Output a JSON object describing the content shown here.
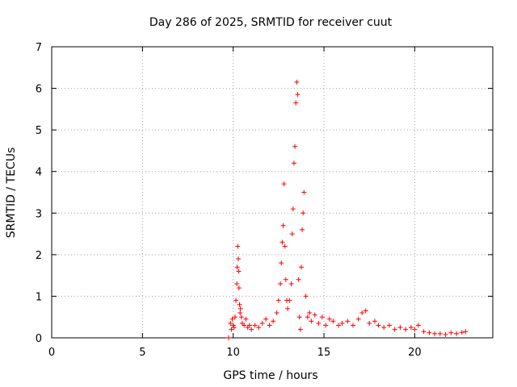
{
  "chart_data": {
    "type": "scatter",
    "title": "Day 286 of 2025, SRMTID for receiver cuut",
    "xlabel": "GPS time / hours",
    "ylabel": "SRMTID / TECUs",
    "xlim": [
      0,
      24.3
    ],
    "ylim": [
      0,
      7
    ],
    "xticks": [
      0,
      5,
      10,
      15,
      20
    ],
    "yticks": [
      0,
      1,
      2,
      3,
      4,
      5,
      6,
      7
    ],
    "grid": true,
    "marker": "+",
    "color": "#ff0000",
    "series": [
      {
        "name": "SRMTID",
        "x": [
          9.75,
          9.85,
          9.9,
          9.95,
          10.0,
          10.05,
          10.1,
          10.15,
          10.2,
          10.22,
          10.25,
          10.28,
          10.3,
          10.32,
          10.35,
          10.38,
          10.4,
          10.45,
          10.5,
          10.6,
          10.7,
          10.8,
          10.9,
          11.0,
          11.2,
          11.4,
          11.6,
          11.8,
          12.0,
          12.2,
          12.4,
          12.5,
          12.6,
          12.65,
          12.7,
          12.75,
          12.8,
          12.85,
          12.9,
          12.95,
          13.0,
          13.1,
          13.2,
          13.25,
          13.3,
          13.35,
          13.4,
          13.45,
          13.5,
          13.55,
          13.6,
          13.65,
          13.7,
          13.75,
          13.8,
          13.85,
          13.9,
          14.0,
          14.1,
          14.2,
          14.3,
          14.5,
          14.7,
          14.9,
          15.1,
          15.3,
          15.5,
          15.8,
          16.0,
          16.3,
          16.6,
          16.9,
          17.1,
          17.3,
          17.5,
          17.8,
          18.0,
          18.3,
          18.6,
          18.9,
          19.2,
          19.5,
          19.8,
          20.0,
          20.2,
          20.5,
          20.8,
          21.1,
          21.4,
          21.7,
          22.0,
          22.3,
          22.6,
          22.8
        ],
        "y": [
          0.0,
          0.35,
          0.2,
          0.45,
          0.3,
          0.25,
          0.5,
          0.9,
          1.3,
          1.7,
          2.2,
          1.9,
          1.6,
          1.2,
          0.8,
          0.6,
          0.7,
          0.5,
          0.35,
          0.3,
          0.45,
          0.25,
          0.3,
          0.2,
          0.3,
          0.25,
          0.35,
          0.45,
          0.3,
          0.4,
          0.6,
          0.9,
          1.3,
          1.8,
          2.3,
          2.7,
          3.7,
          2.2,
          1.4,
          0.9,
          0.7,
          0.9,
          1.3,
          2.5,
          3.1,
          4.2,
          4.6,
          5.65,
          6.15,
          5.85,
          1.4,
          0.5,
          0.2,
          1.7,
          2.6,
          3.0,
          3.5,
          1.0,
          0.5,
          0.6,
          0.4,
          0.55,
          0.35,
          0.5,
          0.3,
          0.45,
          0.4,
          0.3,
          0.35,
          0.4,
          0.3,
          0.45,
          0.6,
          0.65,
          0.35,
          0.4,
          0.3,
          0.25,
          0.3,
          0.2,
          0.25,
          0.2,
          0.25,
          0.2,
          0.3,
          0.15,
          0.12,
          0.1,
          0.1,
          0.08,
          0.12,
          0.1,
          0.13,
          0.15
        ]
      }
    ]
  }
}
